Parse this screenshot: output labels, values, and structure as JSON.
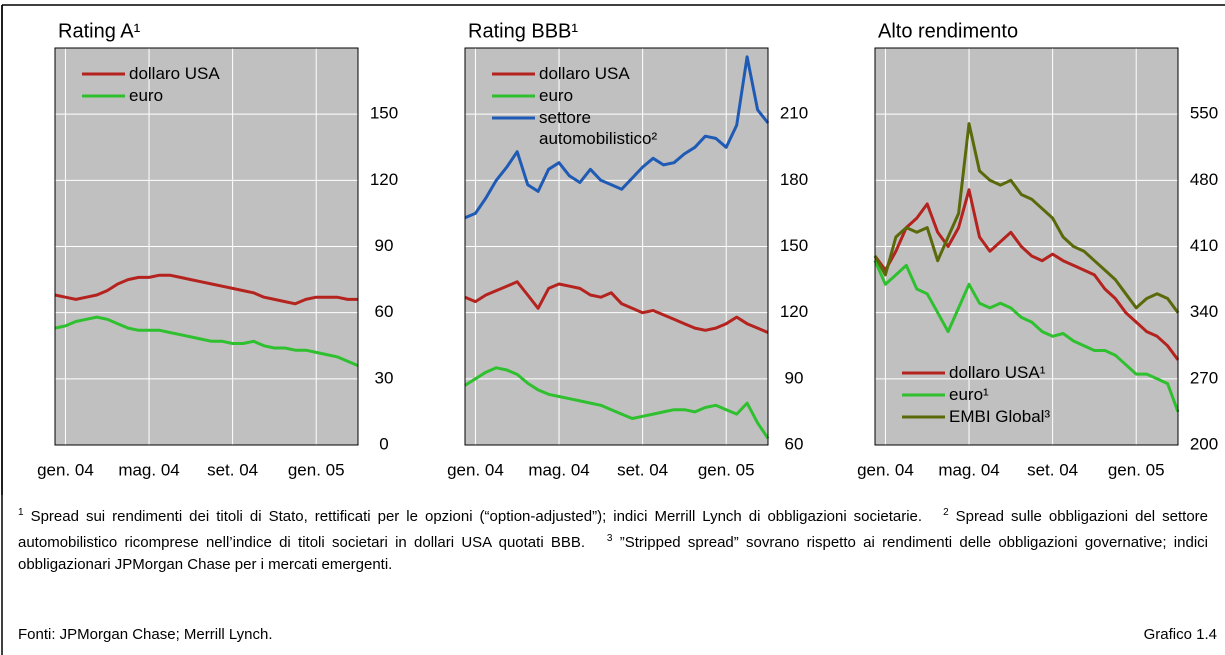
{
  "chart_data": [
    {
      "type": "line",
      "title": "Rating A¹",
      "legend": "upper left",
      "grid": true,
      "x": [
        0,
        0.5,
        1,
        1.5,
        2,
        2.5,
        3,
        3.5,
        4,
        4.5,
        5,
        5.5,
        6,
        6.5,
        7,
        7.5,
        8,
        8.5,
        9,
        9.5,
        10,
        10.5,
        11,
        11.5,
        12,
        12.5,
        13,
        13.5,
        14,
        14.5
      ],
      "xlim": [
        0,
        14.5
      ],
      "xticks": [
        {
          "value": 0.5,
          "label": "gen. 04"
        },
        {
          "value": 4.5,
          "label": "mag. 04"
        },
        {
          "value": 8.5,
          "label": "set. 04"
        },
        {
          "value": 12.5,
          "label": "gen. 05"
        }
      ],
      "ylim": [
        0,
        180
      ],
      "yticks": [
        0,
        30,
        60,
        90,
        120,
        150
      ],
      "series": [
        {
          "name": "dollaro USA",
          "color": "#b5231f",
          "values": [
            68,
            67,
            66,
            67,
            68,
            70,
            73,
            75,
            76,
            76,
            77,
            77,
            76,
            75,
            74,
            73,
            72,
            71,
            70,
            69,
            67,
            66,
            65,
            64,
            66,
            67,
            67,
            67,
            66,
            66
          ]
        },
        {
          "name": "euro",
          "color": "#2fc02f",
          "values": [
            53,
            54,
            56,
            57,
            58,
            57,
            55,
            53,
            52,
            52,
            52,
            51,
            50,
            49,
            48,
            47,
            47,
            46,
            46,
            47,
            45,
            44,
            44,
            43,
            43,
            42,
            41,
            40,
            38,
            36
          ]
        }
      ]
    },
    {
      "type": "line",
      "title": "Rating BBB¹",
      "legend": "upper left",
      "grid": true,
      "x": [
        0,
        0.5,
        1,
        1.5,
        2,
        2.5,
        3,
        3.5,
        4,
        4.5,
        5,
        5.5,
        6,
        6.5,
        7,
        7.5,
        8,
        8.5,
        9,
        9.5,
        10,
        10.5,
        11,
        11.5,
        12,
        12.5,
        13,
        13.5,
        14,
        14.5
      ],
      "xlim": [
        0,
        14.5
      ],
      "xticks": [
        {
          "value": 0.5,
          "label": "gen. 04"
        },
        {
          "value": 4.5,
          "label": "mag. 04"
        },
        {
          "value": 8.5,
          "label": "set. 04"
        },
        {
          "value": 12.5,
          "label": "gen. 05"
        }
      ],
      "ylim": [
        60,
        240
      ],
      "yticks": [
        60,
        90,
        120,
        150,
        180,
        210
      ],
      "series": [
        {
          "name": "dollaro USA",
          "color": "#b5231f",
          "values": [
            127,
            125,
            128,
            130,
            132,
            134,
            128,
            122,
            131,
            133,
            132,
            131,
            128,
            127,
            129,
            124,
            122,
            120,
            121,
            119,
            117,
            115,
            113,
            112,
            113,
            115,
            118,
            115,
            113,
            111
          ]
        },
        {
          "name": "euro",
          "color": "#2fc02f",
          "values": [
            87,
            90,
            93,
            95,
            94,
            92,
            88,
            85,
            83,
            82,
            81,
            80,
            79,
            78,
            76,
            74,
            72,
            73,
            74,
            75,
            76,
            76,
            75,
            77,
            78,
            76,
            74,
            79,
            70,
            63
          ]
        },
        {
          "name": "settore automobilistico²",
          "color": "#1f5bb5",
          "values": [
            163,
            165,
            172,
            180,
            186,
            193,
            178,
            175,
            185,
            188,
            182,
            179,
            185,
            180,
            178,
            176,
            181,
            186,
            190,
            187,
            188,
            192,
            195,
            200,
            199,
            195,
            205,
            236,
            212,
            206
          ]
        }
      ]
    },
    {
      "type": "line",
      "title": "Alto rendimento",
      "legend": "lower left",
      "grid": true,
      "x": [
        0,
        0.5,
        1,
        1.5,
        2,
        2.5,
        3,
        3.5,
        4,
        4.5,
        5,
        5.5,
        6,
        6.5,
        7,
        7.5,
        8,
        8.5,
        9,
        9.5,
        10,
        10.5,
        11,
        11.5,
        12,
        12.5,
        13,
        13.5,
        14,
        14.5
      ],
      "xlim": [
        0,
        14.5
      ],
      "xticks": [
        {
          "value": 0.5,
          "label": "gen. 04"
        },
        {
          "value": 4.5,
          "label": "mag. 04"
        },
        {
          "value": 8.5,
          "label": "set. 04"
        },
        {
          "value": 12.5,
          "label": "gen. 05"
        }
      ],
      "ylim": [
        200,
        620
      ],
      "yticks": [
        200,
        270,
        340,
        410,
        480,
        550
      ],
      "series": [
        {
          "name": "dollaro USA¹",
          "color": "#b5231f",
          "values": [
            400,
            385,
            405,
            430,
            440,
            455,
            425,
            410,
            430,
            470,
            420,
            405,
            415,
            425,
            410,
            400,
            395,
            402,
            395,
            390,
            385,
            380,
            365,
            355,
            340,
            330,
            320,
            315,
            305,
            290
          ]
        },
        {
          "name": "euro¹",
          "color": "#2fc02f",
          "values": [
            395,
            370,
            380,
            390,
            365,
            360,
            340,
            320,
            345,
            370,
            350,
            345,
            350,
            345,
            335,
            330,
            320,
            315,
            318,
            310,
            305,
            300,
            300,
            295,
            285,
            275,
            275,
            270,
            265,
            235
          ]
        },
        {
          "name": "EMBI Global³",
          "color": "#5a6a0a",
          "values": [
            400,
            380,
            420,
            430,
            425,
            430,
            395,
            420,
            445,
            540,
            490,
            480,
            475,
            480,
            465,
            460,
            450,
            440,
            420,
            410,
            405,
            395,
            385,
            375,
            360,
            345,
            355,
            360,
            355,
            340
          ]
        }
      ]
    }
  ],
  "footnotes": [
    {
      "mark": "1",
      "text": "Spread sui rendimenti dei titoli di Stato, rettificati per le opzioni (“option-adjusted”); indici Merrill Lynch di obbligazioni societarie."
    },
    {
      "mark": "2",
      "text": "Spread sulle obbligazioni del settore automobilistico ricomprese nell’indice di titoli societari in dollari USA quotati BBB."
    },
    {
      "mark": "3",
      "text": "”Stripped spread” sovrano rispetto ai rendimenti delle obbligazioni governative; indici obbligazionari JPMorgan Chase per i mercati emergenti."
    }
  ],
  "source": "Fonti: JPMorgan Chase; Merrill Lynch.",
  "figure_number": "Grafico 1.4"
}
